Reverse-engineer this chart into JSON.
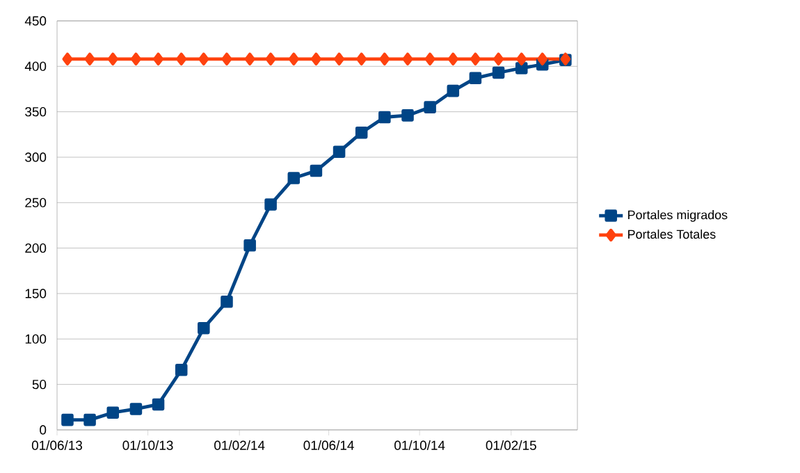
{
  "chart_data": {
    "type": "line",
    "x": [
      "2013-06-15",
      "2013-07-15",
      "2013-08-15",
      "2013-09-15",
      "2013-10-15",
      "2013-11-15",
      "2013-12-15",
      "2014-01-15",
      "2014-02-15",
      "2014-03-15",
      "2014-04-15",
      "2014-05-15",
      "2014-06-15",
      "2014-07-15",
      "2014-08-15",
      "2014-09-15",
      "2014-10-15",
      "2014-11-15",
      "2014-12-15",
      "2015-01-15",
      "2015-02-15",
      "2015-03-15",
      "2015-04-15"
    ],
    "series": [
      {
        "name": "Portales migrados",
        "color": "#004586",
        "marker": "square",
        "values": [
          11,
          11,
          19,
          23,
          28,
          66,
          112,
          141,
          203,
          248,
          277,
          285,
          306,
          327,
          344,
          346,
          355,
          373,
          387,
          393,
          398,
          402,
          407
        ]
      },
      {
        "name": "Portales Totales",
        "color": "#ff420e",
        "marker": "diamond",
        "values": [
          408,
          408,
          408,
          408,
          408,
          408,
          408,
          408,
          408,
          408,
          408,
          408,
          408,
          408,
          408,
          408,
          408,
          408,
          408,
          408,
          408,
          408,
          408
        ]
      }
    ],
    "xlim": [
      "2013-06-01",
      "2015-05-01"
    ],
    "xticks": [
      {
        "value": "2013-06-01",
        "label": "01/06/13"
      },
      {
        "value": "2013-10-01",
        "label": "01/10/13"
      },
      {
        "value": "2014-02-01",
        "label": "01/02/14"
      },
      {
        "value": "2014-06-01",
        "label": "01/06/14"
      },
      {
        "value": "2014-10-01",
        "label": "01/10/14"
      },
      {
        "value": "2015-02-01",
        "label": "01/02/15"
      }
    ],
    "ylim": [
      0,
      450
    ],
    "yticks": [
      0,
      50,
      100,
      150,
      200,
      250,
      300,
      350,
      400,
      450
    ],
    "grid": "y",
    "legend": "right",
    "line_style": "solid"
  }
}
